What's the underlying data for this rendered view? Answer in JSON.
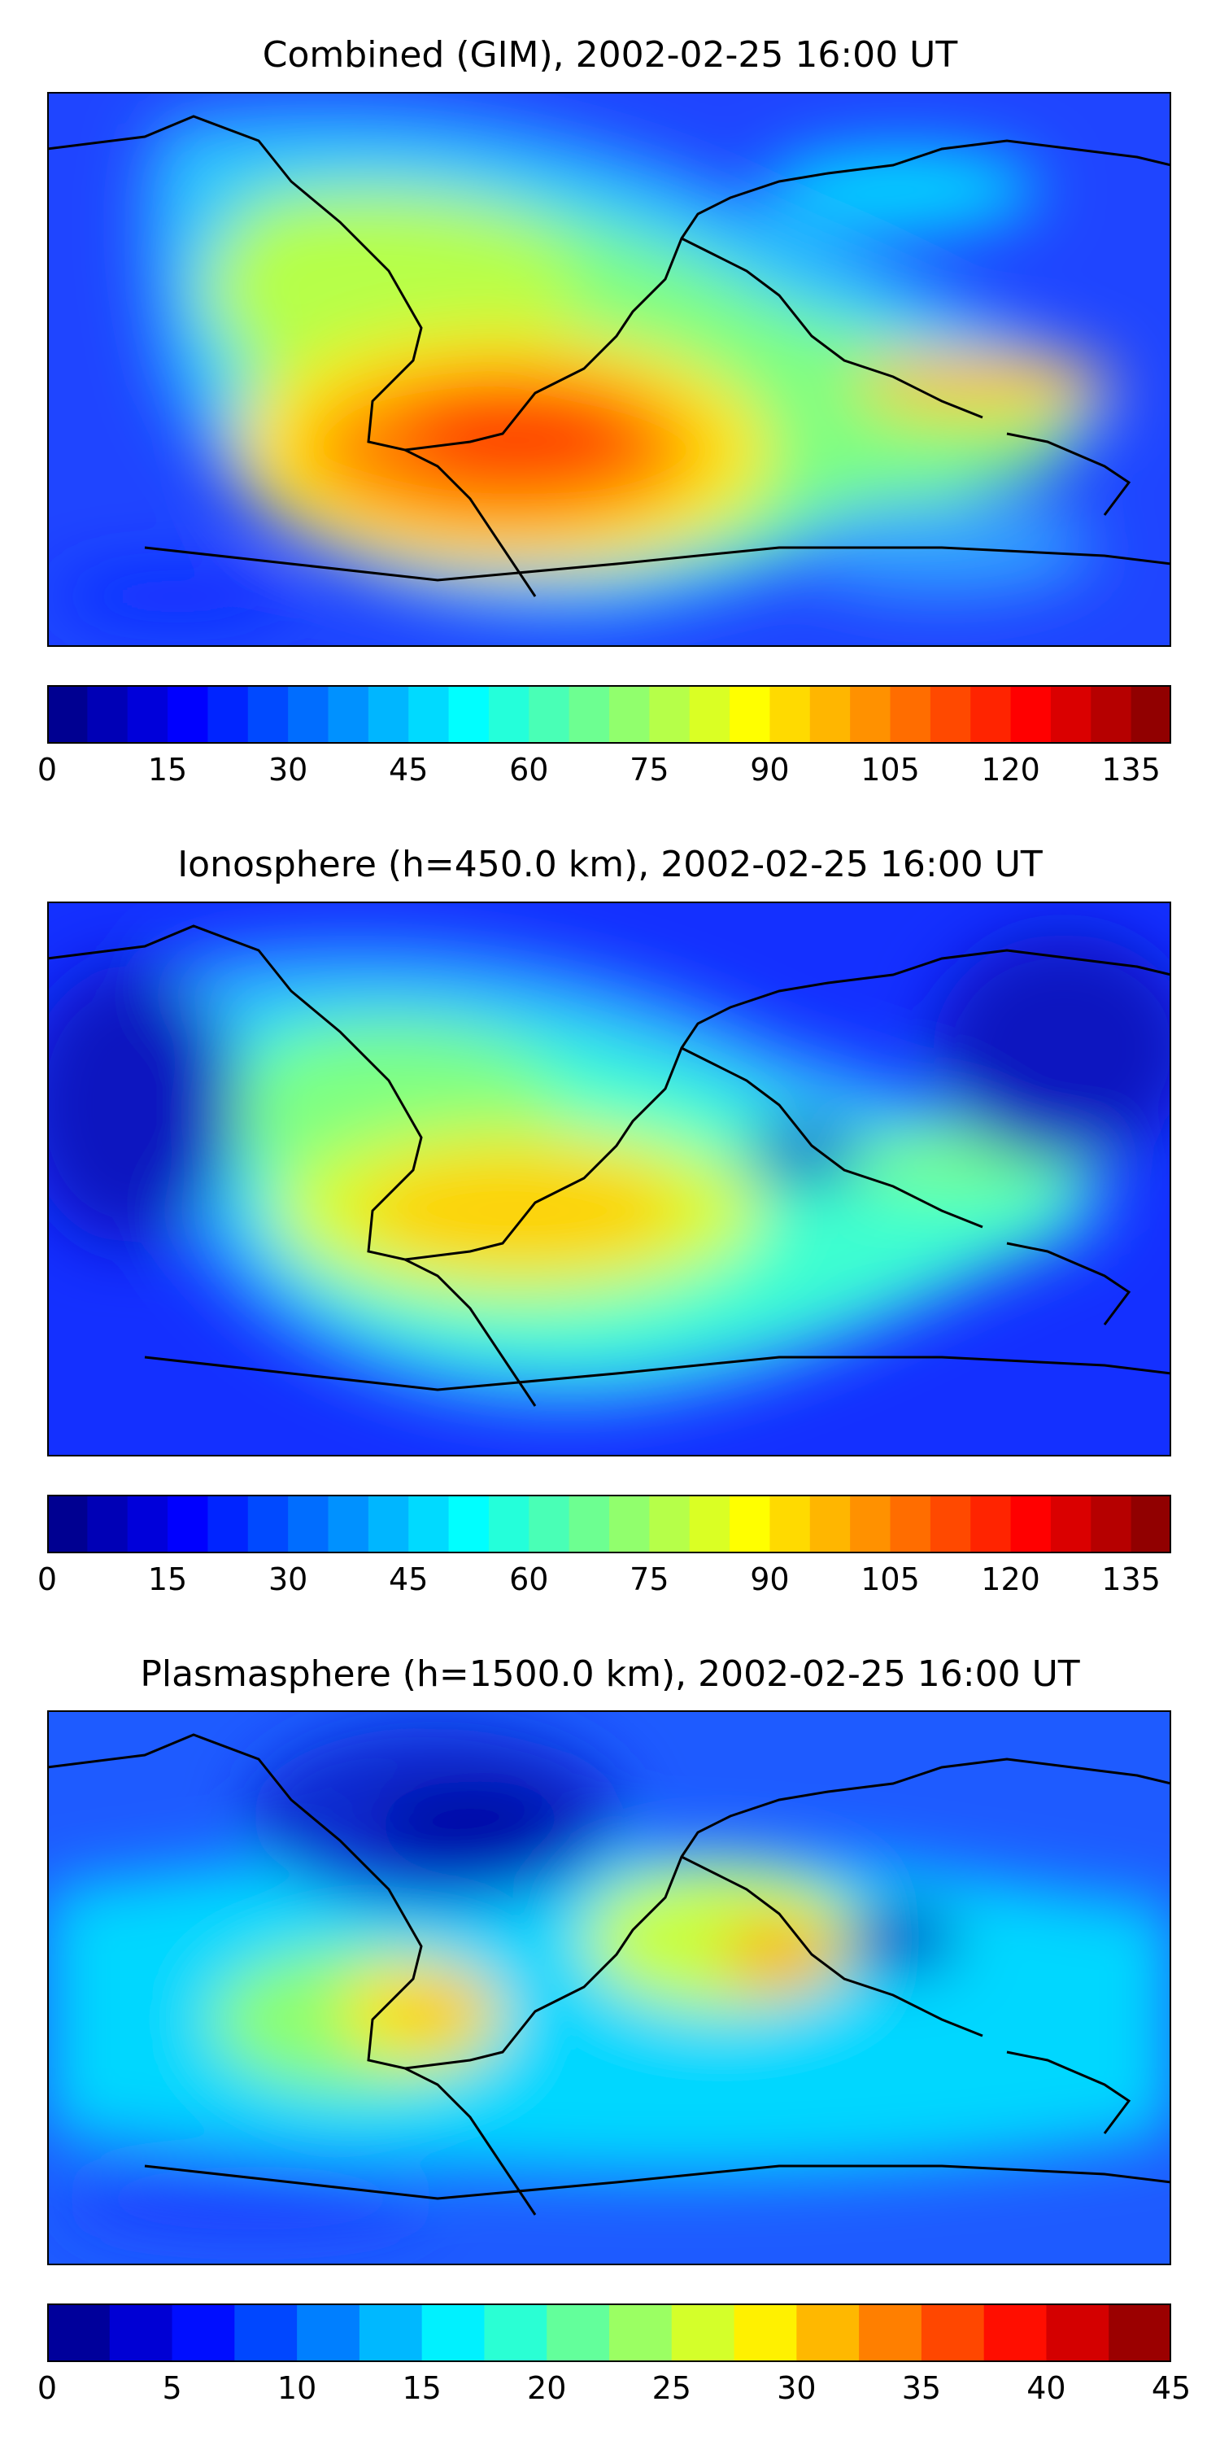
{
  "panels": [
    {
      "title": "Combined (GIM), 2002-02-25 16:00 UT",
      "colorbar": {
        "ticks": [
          "0",
          "15",
          "30",
          "45",
          "60",
          "75",
          "90",
          "105",
          "120",
          "135"
        ],
        "min": 0,
        "max": 140,
        "levels": 28,
        "tick_values": [
          0,
          15,
          30,
          45,
          60,
          75,
          90,
          105,
          120,
          135
        ]
      }
    },
    {
      "title": "Ionosphere  (h=450.0 km), 2002-02-25 16:00 UT",
      "colorbar": {
        "ticks": [
          "0",
          "15",
          "30",
          "45",
          "60",
          "75",
          "90",
          "105",
          "120",
          "135"
        ],
        "min": 0,
        "max": 140,
        "levels": 28,
        "tick_values": [
          0,
          15,
          30,
          45,
          60,
          75,
          90,
          105,
          120,
          135
        ]
      }
    },
    {
      "title": "Plasmasphere (h=1500.0 km), 2002-02-25 16:00 UT",
      "colorbar": {
        "ticks": [
          "0",
          "5",
          "10",
          "15",
          "20",
          "25",
          "30",
          "35",
          "40",
          "45"
        ],
        "min": 0,
        "max": 45,
        "levels": 18,
        "tick_values": [
          0,
          5,
          10,
          15,
          20,
          25,
          30,
          35,
          40,
          45
        ]
      }
    }
  ],
  "colormap": "jet",
  "colors": {
    "jet_stops": [
      "#00007f",
      "#0000ff",
      "#007fff",
      "#00ffff",
      "#7fff7f",
      "#ffff00",
      "#ff7f00",
      "#ff0000",
      "#7f0000"
    ],
    "coastline": "#000000"
  }
}
